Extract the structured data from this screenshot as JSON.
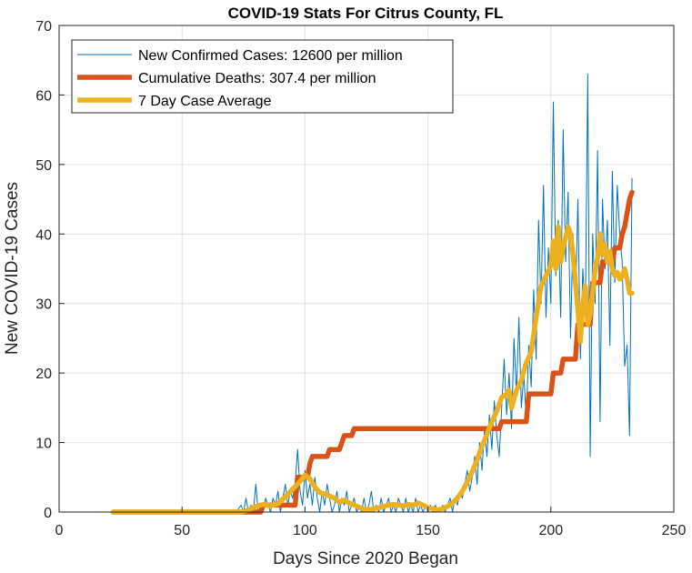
{
  "chart_data": {
    "type": "line",
    "title": "COVID-19 Stats For Citrus County, FL",
    "xlabel": "Days Since 2020 Began",
    "ylabel": "New COVID-19 Cases",
    "xlim": [
      0,
      250
    ],
    "ylim": [
      0,
      70
    ],
    "xticks": [
      0,
      50,
      100,
      150,
      200,
      250
    ],
    "yticks": [
      0,
      10,
      20,
      30,
      40,
      50,
      60,
      70
    ],
    "grid": true,
    "legend_position": "top-left",
    "series": [
      {
        "name": "New Confirmed Cases: 12600 per million",
        "color": "#0072BD",
        "line_width": "thin",
        "points": [
          [
            22,
            0
          ],
          [
            30,
            0
          ],
          [
            40,
            0
          ],
          [
            50,
            0
          ],
          [
            60,
            0
          ],
          [
            70,
            0
          ],
          [
            72,
            0
          ],
          [
            74,
            1
          ],
          [
            75,
            0
          ],
          [
            76,
            2
          ],
          [
            77,
            0
          ],
          [
            78,
            1
          ],
          [
            79,
            0
          ],
          [
            80,
            4
          ],
          [
            81,
            0
          ],
          [
            82,
            1
          ],
          [
            83,
            0
          ],
          [
            84,
            2
          ],
          [
            85,
            1
          ],
          [
            86,
            0
          ],
          [
            87,
            2
          ],
          [
            88,
            1
          ],
          [
            89,
            3
          ],
          [
            90,
            0
          ],
          [
            91,
            2
          ],
          [
            92,
            4
          ],
          [
            93,
            1
          ],
          [
            94,
            3
          ],
          [
            95,
            2
          ],
          [
            96,
            4
          ],
          [
            97,
            9
          ],
          [
            98,
            3
          ],
          [
            99,
            1
          ],
          [
            100,
            6
          ],
          [
            101,
            2
          ],
          [
            102,
            4
          ],
          [
            103,
            1
          ],
          [
            104,
            5
          ],
          [
            105,
            2
          ],
          [
            106,
            0
          ],
          [
            107,
            3
          ],
          [
            108,
            1
          ],
          [
            109,
            4
          ],
          [
            110,
            2
          ],
          [
            111,
            0
          ],
          [
            112,
            1
          ],
          [
            113,
            3
          ],
          [
            114,
            0
          ],
          [
            115,
            2
          ],
          [
            116,
            1
          ],
          [
            117,
            3
          ],
          [
            118,
            0
          ],
          [
            119,
            1
          ],
          [
            120,
            2
          ],
          [
            121,
            0
          ],
          [
            122,
            1
          ],
          [
            123,
            0
          ],
          [
            124,
            2
          ],
          [
            125,
            0
          ],
          [
            126,
            1
          ],
          [
            127,
            3
          ],
          [
            128,
            0
          ],
          [
            129,
            1
          ],
          [
            130,
            0
          ],
          [
            131,
            2
          ],
          [
            132,
            0
          ],
          [
            133,
            1
          ],
          [
            134,
            2
          ],
          [
            135,
            0
          ],
          [
            136,
            1
          ],
          [
            137,
            0
          ],
          [
            138,
            2
          ],
          [
            139,
            1
          ],
          [
            140,
            0
          ],
          [
            141,
            2
          ],
          [
            142,
            0
          ],
          [
            143,
            1
          ],
          [
            144,
            0
          ],
          [
            145,
            2
          ],
          [
            146,
            0
          ],
          [
            147,
            1
          ],
          [
            148,
            0
          ],
          [
            149,
            1
          ],
          [
            150,
            0
          ],
          [
            151,
            1
          ],
          [
            152,
            0
          ],
          [
            153,
            1
          ],
          [
            154,
            0
          ],
          [
            155,
            0
          ],
          [
            156,
            1
          ],
          [
            157,
            0
          ],
          [
            158,
            1
          ],
          [
            159,
            2
          ],
          [
            160,
            0
          ],
          [
            161,
            2
          ],
          [
            162,
            1
          ],
          [
            163,
            3
          ],
          [
            164,
            2
          ],
          [
            165,
            4
          ],
          [
            166,
            6
          ],
          [
            167,
            3
          ],
          [
            168,
            5
          ],
          [
            169,
            8
          ],
          [
            170,
            4
          ],
          [
            171,
            10
          ],
          [
            172,
            6
          ],
          [
            173,
            12
          ],
          [
            174,
            8
          ],
          [
            175,
            14
          ],
          [
            176,
            9
          ],
          [
            177,
            16
          ],
          [
            178,
            11
          ],
          [
            179,
            8
          ],
          [
            180,
            15
          ],
          [
            181,
            22
          ],
          [
            182,
            14
          ],
          [
            183,
            20
          ],
          [
            184,
            12
          ],
          [
            185,
            25
          ],
          [
            186,
            17
          ],
          [
            187,
            28
          ],
          [
            188,
            15
          ],
          [
            189,
            20
          ],
          [
            190,
            13
          ],
          [
            191,
            24
          ],
          [
            192,
            18
          ],
          [
            193,
            32
          ],
          [
            194,
            22
          ],
          [
            195,
            42
          ],
          [
            196,
            30
          ],
          [
            197,
            47
          ],
          [
            198,
            28
          ],
          [
            199,
            38
          ],
          [
            200,
            30
          ],
          [
            201,
            59
          ],
          [
            202,
            34
          ],
          [
            203,
            42
          ],
          [
            204,
            28
          ],
          [
            205,
            55
          ],
          [
            206,
            36
          ],
          [
            207,
            46
          ],
          [
            208,
            25
          ],
          [
            209,
            40
          ],
          [
            210,
            30
          ],
          [
            211,
            45
          ],
          [
            212,
            22
          ],
          [
            213,
            35
          ],
          [
            214,
            28
          ],
          [
            215,
            63
          ],
          [
            216,
            8
          ],
          [
            217,
            40
          ],
          [
            218,
            30
          ],
          [
            219,
            52
          ],
          [
            220,
            13
          ],
          [
            221,
            45
          ],
          [
            222,
            35
          ],
          [
            223,
            42
          ],
          [
            224,
            24
          ],
          [
            225,
            49
          ],
          [
            226,
            33
          ],
          [
            227,
            47
          ],
          [
            228,
            40
          ],
          [
            229,
            36
          ],
          [
            230,
            21
          ],
          [
            231,
            24
          ],
          [
            232,
            11
          ],
          [
            233,
            48
          ]
        ]
      },
      {
        "name": "Cumulative Deaths: 307.4 per million",
        "color": "#D95319",
        "line_width": "thick",
        "points": [
          [
            22,
            0
          ],
          [
            82,
            0
          ],
          [
            83,
            1
          ],
          [
            96,
            1
          ],
          [
            97,
            5
          ],
          [
            101,
            5
          ],
          [
            102,
            7
          ],
          [
            103,
            8
          ],
          [
            109,
            8
          ],
          [
            110,
            9
          ],
          [
            114,
            9
          ],
          [
            115,
            10
          ],
          [
            116,
            11
          ],
          [
            119,
            11
          ],
          [
            120,
            12
          ],
          [
            137,
            12
          ],
          [
            138,
            12
          ],
          [
            179,
            12
          ],
          [
            180,
            13
          ],
          [
            190,
            13
          ],
          [
            191,
            17
          ],
          [
            200,
            17
          ],
          [
            201,
            20
          ],
          [
            204,
            20
          ],
          [
            205,
            22
          ],
          [
            210,
            22
          ],
          [
            211,
            27
          ],
          [
            216,
            27
          ],
          [
            217,
            33
          ],
          [
            220,
            33
          ],
          [
            221,
            36
          ],
          [
            225,
            36
          ],
          [
            226,
            38
          ],
          [
            228,
            38
          ],
          [
            229,
            40
          ],
          [
            230,
            41
          ],
          [
            231,
            43
          ],
          [
            232,
            45
          ],
          [
            233,
            46
          ]
        ]
      },
      {
        "name": "7 Day Case Average",
        "color": "#EDB120",
        "line_width": "thick",
        "points": [
          [
            22,
            0
          ],
          [
            74,
            0
          ],
          [
            77,
            0.3
          ],
          [
            80,
            0.8
          ],
          [
            83,
            1.1
          ],
          [
            86,
            0.9
          ],
          [
            89,
            1.2
          ],
          [
            92,
            2.2
          ],
          [
            95,
            3.3
          ],
          [
            98,
            4.4
          ],
          [
            100,
            5.3
          ],
          [
            102,
            4.8
          ],
          [
            104,
            3.6
          ],
          [
            106,
            2.8
          ],
          [
            108,
            2.6
          ],
          [
            110,
            2.3
          ],
          [
            112,
            2.0
          ],
          [
            114,
            1.4
          ],
          [
            116,
            1.7
          ],
          [
            118,
            1.3
          ],
          [
            120,
            1.0
          ],
          [
            122,
            0.7
          ],
          [
            124,
            0.4
          ],
          [
            126,
            0.3
          ],
          [
            128,
            0.5
          ],
          [
            130,
            0.6
          ],
          [
            132,
            0.8
          ],
          [
            134,
            1.0
          ],
          [
            136,
            1.1
          ],
          [
            138,
            1.0
          ],
          [
            140,
            0.9
          ],
          [
            142,
            1.1
          ],
          [
            144,
            1.0
          ],
          [
            146,
            1.3
          ],
          [
            148,
            1.0
          ],
          [
            150,
            0.6
          ],
          [
            152,
            0.5
          ],
          [
            154,
            0.3
          ],
          [
            156,
            0.5
          ],
          [
            158,
            0.8
          ],
          [
            160,
            1.3
          ],
          [
            162,
            2.0
          ],
          [
            164,
            3.0
          ],
          [
            166,
            4.3
          ],
          [
            168,
            5.8
          ],
          [
            170,
            7.5
          ],
          [
            172,
            9.5
          ],
          [
            174,
            11.2
          ],
          [
            176,
            13.0
          ],
          [
            178,
            14.5
          ],
          [
            180,
            16.5
          ],
          [
            182,
            17.0
          ],
          [
            183,
            17.5
          ],
          [
            184,
            15.0
          ],
          [
            186,
            17.5
          ],
          [
            188,
            19.0
          ],
          [
            190,
            21.5
          ],
          [
            192,
            23.0
          ],
          [
            194,
            28.0
          ],
          [
            196,
            32.5
          ],
          [
            198,
            34.0
          ],
          [
            200,
            35.5
          ],
          [
            201,
            39.0
          ],
          [
            202,
            35.0
          ],
          [
            203,
            41.0
          ],
          [
            204,
            36.0
          ],
          [
            205,
            38.0
          ],
          [
            206,
            39.5
          ],
          [
            207,
            41.0
          ],
          [
            208,
            40.0
          ],
          [
            209,
            37.0
          ],
          [
            210,
            33.0
          ],
          [
            211,
            29.0
          ],
          [
            212,
            24.5
          ],
          [
            213,
            30.0
          ],
          [
            214,
            32.5
          ],
          [
            215,
            27.0
          ],
          [
            216,
            28.5
          ],
          [
            217,
            31.5
          ],
          [
            218,
            35.0
          ],
          [
            219,
            36.5
          ],
          [
            220,
            40.0
          ],
          [
            221,
            37.0
          ],
          [
            222,
            38.5
          ],
          [
            223,
            36.0
          ],
          [
            224,
            37.5
          ],
          [
            225,
            35.0
          ],
          [
            226,
            34.0
          ],
          [
            227,
            34.5
          ],
          [
            228,
            33.5
          ],
          [
            229,
            34.0
          ],
          [
            230,
            35.0
          ],
          [
            231,
            33.5
          ],
          [
            232,
            31.5
          ],
          [
            233,
            31.5
          ]
        ]
      }
    ]
  }
}
